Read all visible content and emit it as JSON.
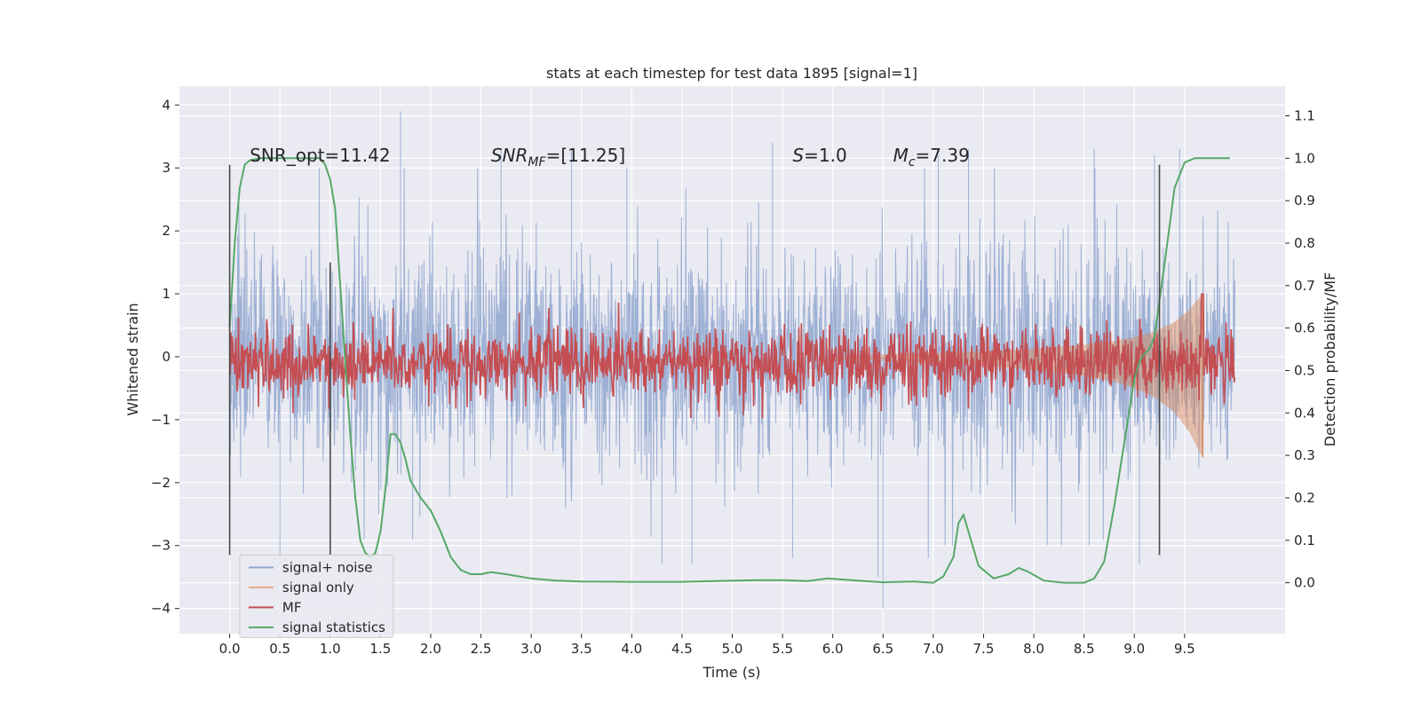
{
  "chart_data": {
    "type": "line",
    "title": "stats at each timestep for test data 1895 [signal=1]",
    "xlabel": "Time (s)",
    "ylabel": "Whitened strain",
    "y2label": "Detection probability/MF",
    "xlim": [
      -0.5,
      10.5
    ],
    "ylim": [
      -4.4,
      4.3
    ],
    "y2lim": [
      -0.12,
      1.17
    ],
    "x_ticks": [
      0.0,
      0.5,
      1.0,
      1.5,
      2.0,
      2.5,
      3.0,
      3.5,
      4.0,
      4.5,
      5.0,
      5.5,
      6.0,
      6.5,
      7.0,
      7.5,
      8.0,
      8.5,
      9.0,
      9.5
    ],
    "x_tick_labels": [
      "0.0",
      "0.5",
      "1.0",
      "1.5",
      "2.0",
      "2.5",
      "3.0",
      "3.5",
      "4.0",
      "4.5",
      "5.0",
      "5.5",
      "6.0",
      "6.5",
      "7.0",
      "7.5",
      "8.0",
      "8.5",
      "9.0",
      "9.5"
    ],
    "y_ticks": [
      -4,
      -3,
      -2,
      -1,
      0,
      1,
      2,
      3,
      4
    ],
    "y_tick_labels": [
      "−4",
      "−3",
      "−2",
      "−1",
      "0",
      "1",
      "2",
      "3",
      "4"
    ],
    "y2_ticks": [
      0.0,
      0.1,
      0.2,
      0.3,
      0.4,
      0.5,
      0.6,
      0.7,
      0.8,
      0.9,
      1.0,
      1.1
    ],
    "y2_tick_labels": [
      "0.0",
      "0.1",
      "0.2",
      "0.3",
      "0.4",
      "0.5",
      "0.6",
      "0.7",
      "0.8",
      "0.9",
      "1.0",
      "1.1"
    ],
    "grid": true,
    "legend_position": "lower-left",
    "annotations": [
      {
        "text": "SNR_opt=11.42",
        "x": 0.2,
        "y": 3.1
      },
      {
        "text": "SNR",
        "sub": "MF",
        "suffix": "=[11.25]",
        "italic": true,
        "x": 2.6,
        "y": 3.1
      },
      {
        "text": "S",
        "suffix": "=1.0",
        "italic": true,
        "x": 5.6,
        "y": 3.1
      },
      {
        "text": "M",
        "sub": "c",
        "suffix": "=7.39",
        "italic": true,
        "x": 6.6,
        "y": 3.1
      }
    ],
    "vertical_markers": [
      {
        "x": 0.0,
        "y_from": -3.15,
        "y_to": 3.05
      },
      {
        "x": 1.0,
        "y_from": -3.15,
        "y_to": 1.5
      },
      {
        "x": 9.25,
        "y_from": -3.15,
        "y_to": 3.05
      }
    ],
    "series": [
      {
        "name": "signal+ noise",
        "color": "#8fa6cf",
        "style": "noise",
        "x_range": [
          0.0,
          10.0
        ],
        "spread": 1.0,
        "peaks": [
          [
            1.7,
            3.9
          ],
          [
            1.82,
            -2.9
          ],
          [
            2.7,
            3.3
          ],
          [
            3.4,
            3.3
          ],
          [
            4.3,
            -3.3
          ],
          [
            4.6,
            -3.3
          ],
          [
            5.4,
            3.4
          ],
          [
            5.6,
            -3.2
          ],
          [
            6.5,
            -4.0
          ],
          [
            6.45,
            -3.5
          ],
          [
            7.05,
            3.2
          ],
          [
            7.35,
            3.3
          ],
          [
            8.55,
            -3.0
          ],
          [
            8.6,
            3.3
          ],
          [
            9.05,
            -3.3
          ],
          [
            9.2,
            3.2
          ],
          [
            9.45,
            3.3
          ],
          [
            0.5,
            -3.3
          ],
          [
            6.95,
            -3.2
          ],
          [
            3.95,
            3.0
          ]
        ]
      },
      {
        "name": "signal only",
        "color": "#dd8452",
        "style": "chirp",
        "x": [
          6.0,
          6.5,
          7.0,
          7.5,
          8.0,
          8.5,
          8.8,
          9.0,
          9.2,
          9.4,
          9.55,
          9.65,
          9.68
        ],
        "amplitude": [
          0.02,
          0.04,
          0.06,
          0.09,
          0.13,
          0.19,
          0.25,
          0.31,
          0.4,
          0.55,
          0.75,
          0.95,
          1.0
        ]
      },
      {
        "name": "MF",
        "color": "#c44e52",
        "style": "mf",
        "x_range": [
          0.0,
          10.0
        ],
        "level": 0.52,
        "spread": 0.04,
        "spike": {
          "x": 9.68,
          "y": 0.68
        }
      },
      {
        "name": "signal statistics",
        "color": "#55a868",
        "style": "line",
        "x": [
          0.0,
          0.05,
          0.1,
          0.15,
          0.2,
          0.3,
          0.5,
          0.7,
          0.9,
          0.95,
          1.0,
          1.05,
          1.1,
          1.15,
          1.2,
          1.25,
          1.3,
          1.35,
          1.4,
          1.45,
          1.5,
          1.55,
          1.6,
          1.65,
          1.7,
          1.75,
          1.8,
          1.9,
          2.0,
          2.1,
          2.2,
          2.3,
          2.4,
          2.5,
          2.6,
          2.75,
          3.0,
          3.25,
          3.5,
          4.0,
          4.5,
          5.0,
          5.25,
          5.5,
          5.75,
          5.95,
          6.25,
          6.5,
          6.8,
          7.0,
          7.1,
          7.2,
          7.25,
          7.3,
          7.35,
          7.45,
          7.6,
          7.75,
          7.85,
          7.95,
          8.1,
          8.3,
          8.5,
          8.6,
          8.7,
          8.8,
          8.9,
          9.0,
          9.05,
          9.1,
          9.15,
          9.2,
          9.3,
          9.4,
          9.5,
          9.6,
          9.8,
          9.95
        ],
        "y": [
          0.6,
          0.8,
          0.93,
          0.985,
          0.995,
          1.0,
          1.0,
          1.0,
          1.0,
          0.985,
          0.95,
          0.88,
          0.7,
          0.52,
          0.35,
          0.2,
          0.1,
          0.07,
          0.06,
          0.07,
          0.12,
          0.22,
          0.35,
          0.35,
          0.33,
          0.29,
          0.24,
          0.2,
          0.17,
          0.12,
          0.06,
          0.03,
          0.02,
          0.02,
          0.025,
          0.02,
          0.01,
          0.005,
          0.003,
          0.002,
          0.002,
          0.005,
          0.006,
          0.006,
          0.004,
          0.01,
          0.005,
          0.001,
          0.003,
          0.0,
          0.015,
          0.06,
          0.14,
          0.16,
          0.12,
          0.04,
          0.01,
          0.02,
          0.035,
          0.025,
          0.005,
          0.0,
          0.0,
          0.01,
          0.05,
          0.18,
          0.33,
          0.48,
          0.52,
          0.54,
          0.55,
          0.58,
          0.75,
          0.93,
          0.99,
          1.0,
          1.0,
          1.0
        ]
      }
    ],
    "legend": [
      {
        "label": "signal+ noise",
        "color": "#8fa6cf"
      },
      {
        "label": "signal only",
        "color": "#e8a98c"
      },
      {
        "label": "MF",
        "color": "#c44e52"
      },
      {
        "label": "signal statistics",
        "color": "#55a868"
      }
    ]
  }
}
